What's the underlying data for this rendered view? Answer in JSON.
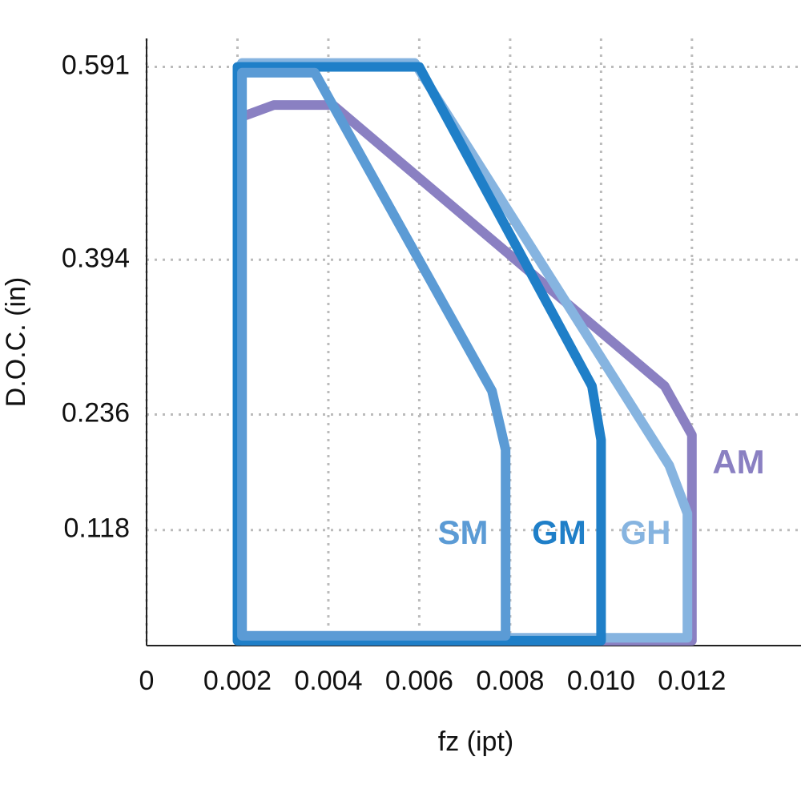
{
  "chart_data": {
    "type": "region",
    "x_label": "fz (ipt)",
    "y_label": "D.O.C. (in)",
    "xlim": [
      0,
      0.0144
    ],
    "ylim": [
      0,
      0.62
    ],
    "xticks": [
      0,
      0.002,
      0.004,
      0.006,
      0.008,
      {
        "value": 0.01,
        "label": "0.010"
      },
      0.012
    ],
    "yticks": [
      0.118,
      0.236,
      0.394,
      0.591
    ],
    "grid": true,
    "series": [
      {
        "name": "AM",
        "color": "#8a80c2",
        "x": [
          0.0021,
          0.0021,
          0.0028,
          0.0041,
          0.0114,
          0.012,
          0.012,
          0.0021
        ],
        "values": [
          0.005,
          0.54,
          0.552,
          0.552,
          0.265,
          0.215,
          0.005,
          0.005
        ]
      },
      {
        "name": "GH",
        "color": "#86b4e0",
        "x": [
          0.0021,
          0.0021,
          0.0059,
          0.0115,
          0.0119,
          0.0119,
          0.0021
        ],
        "values": [
          0.008,
          0.595,
          0.595,
          0.184,
          0.135,
          0.008,
          0.008
        ]
      },
      {
        "name": "GM",
        "color": "#1f7fc8",
        "x": [
          0.002,
          0.002,
          0.006,
          0.0098,
          0.01,
          0.01,
          0.002
        ],
        "values": [
          0.005,
          0.591,
          0.591,
          0.265,
          0.21,
          0.005,
          0.005
        ]
      },
      {
        "name": "SM",
        "color": "#5b9bd5",
        "x": [
          0.0021,
          0.0021,
          0.0037,
          0.0076,
          0.0079,
          0.0079,
          0.0021
        ],
        "values": [
          0.01,
          0.585,
          0.585,
          0.26,
          0.2,
          0.01,
          0.01
        ]
      }
    ]
  }
}
